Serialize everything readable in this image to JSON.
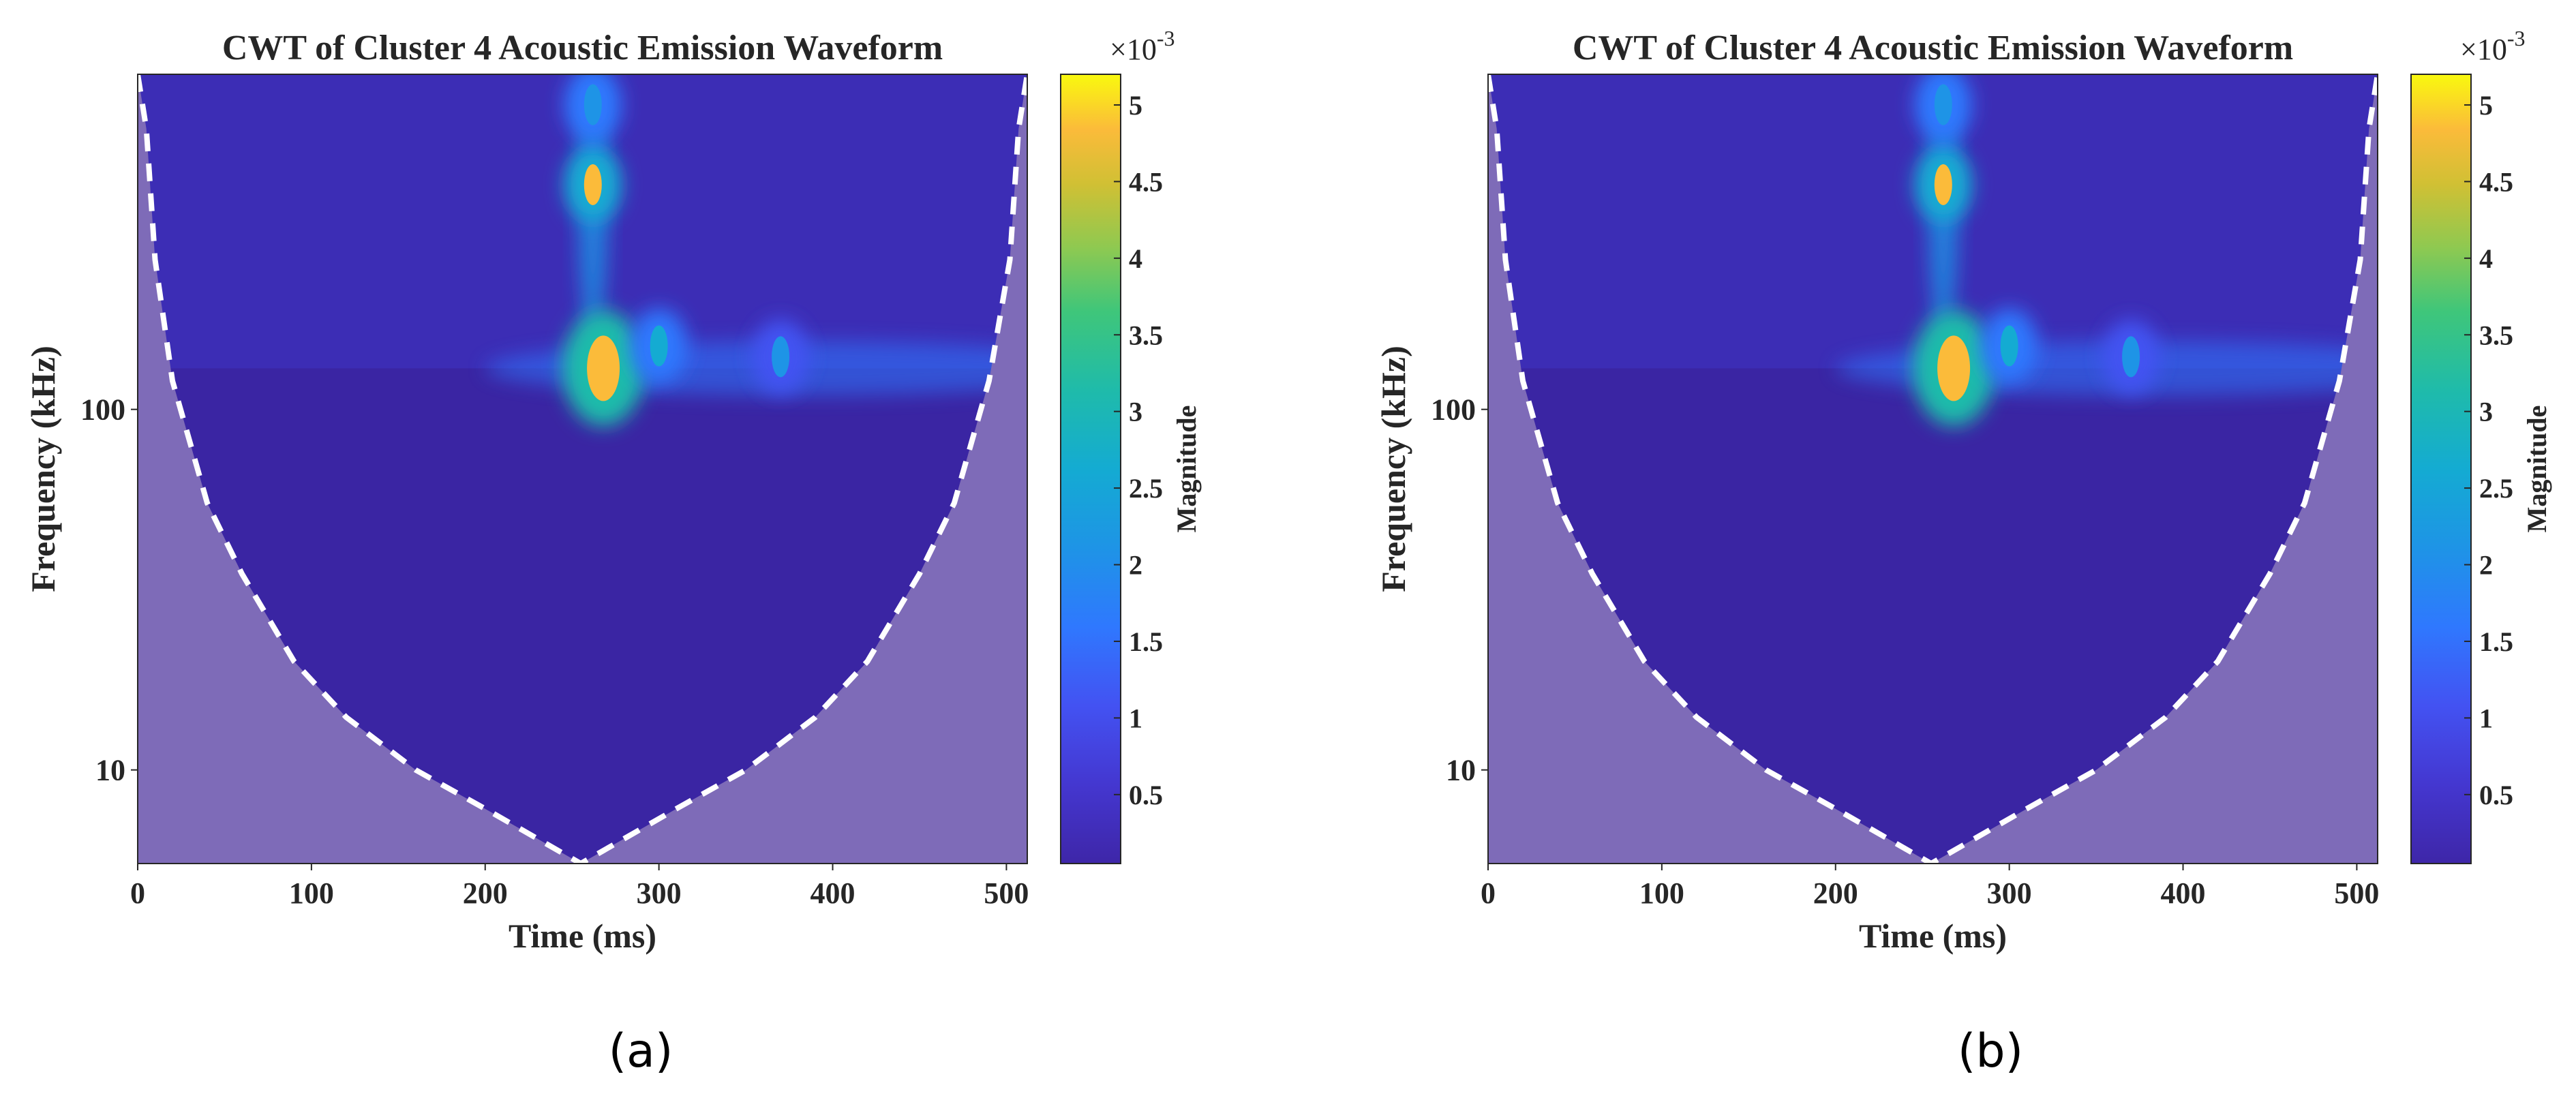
{
  "chart_data": [
    {
      "panel_label": "(a)",
      "type": "heatmap",
      "title": "CWT of Cluster 4 Acoustic Emission Waveform",
      "xlabel": "Time (ms)",
      "ylabel": "Frequency (kHz)",
      "xlim": [
        0,
        512
      ],
      "ylim": [
        5.5,
        850
      ],
      "yscale": "log",
      "xticks": [
        "0",
        "100",
        "200",
        "300",
        "400",
        "500"
      ],
      "yticks": [
        "10",
        "100"
      ],
      "colorbar": {
        "label": "Magnitude",
        "multiplier": "×10",
        "multiplier_exp": "-3",
        "range": [
          0.05,
          5.2
        ],
        "ticks": [
          "0.5",
          "1",
          "1.5",
          "2",
          "2.5",
          "3",
          "3.5",
          "4",
          "4.5",
          "5"
        ],
        "colormap": "parula"
      },
      "cone_of_influence": {
        "style": "white dashed",
        "shaded_color": "#7e6bb8",
        "points": [
          [
            0,
            850
          ],
          [
            5,
            600
          ],
          [
            10,
            260
          ],
          [
            20,
            120
          ],
          [
            40,
            55
          ],
          [
            60,
            35
          ],
          [
            90,
            20
          ],
          [
            120,
            14
          ],
          [
            160,
            10
          ],
          [
            200,
            7.8
          ],
          [
            255,
            5.5
          ],
          [
            310,
            7.8
          ],
          [
            350,
            10
          ],
          [
            390,
            14
          ],
          [
            420,
            20
          ],
          [
            450,
            35
          ],
          [
            470,
            55
          ],
          [
            490,
            120
          ],
          [
            502,
            260
          ],
          [
            507,
            600
          ],
          [
            512,
            850
          ]
        ]
      },
      "hotspots": [
        {
          "time": 268,
          "freq": 130,
          "magnitude": 4.8
        },
        {
          "time": 262,
          "freq": 420,
          "magnitude": 4.5
        },
        {
          "time": 300,
          "freq": 150,
          "magnitude": 2.6
        },
        {
          "time": 370,
          "freq": 140,
          "magnitude": 1.6
        },
        {
          "time": 262,
          "freq": 700,
          "magnitude": 2.0
        }
      ]
    },
    {
      "panel_label": "(b)",
      "type": "heatmap",
      "title": "CWT of Cluster 4 Acoustic Emission Waveform",
      "xlabel": "Time (ms)",
      "ylabel": "Frequency (kHz)",
      "xlim": [
        0,
        512
      ],
      "ylim": [
        5.5,
        850
      ],
      "yscale": "log",
      "xticks": [
        "0",
        "100",
        "200",
        "300",
        "400",
        "500"
      ],
      "yticks": [
        "10",
        "100"
      ],
      "colorbar": {
        "label": "Magnitude",
        "multiplier": "×10",
        "multiplier_exp": "-3",
        "range": [
          0.05,
          5.2
        ],
        "ticks": [
          "0.5",
          "1",
          "1.5",
          "2",
          "2.5",
          "3",
          "3.5",
          "4",
          "4.5",
          "5"
        ],
        "colormap": "parula"
      },
      "cone_of_influence": {
        "style": "white dashed",
        "shaded_color": "#7e6bb8",
        "points": [
          [
            0,
            850
          ],
          [
            5,
            600
          ],
          [
            10,
            260
          ],
          [
            20,
            120
          ],
          [
            40,
            55
          ],
          [
            60,
            35
          ],
          [
            90,
            20
          ],
          [
            120,
            14
          ],
          [
            160,
            10
          ],
          [
            200,
            7.8
          ],
          [
            255,
            5.5
          ],
          [
            310,
            7.8
          ],
          [
            350,
            10
          ],
          [
            390,
            14
          ],
          [
            420,
            20
          ],
          [
            450,
            35
          ],
          [
            470,
            55
          ],
          [
            490,
            120
          ],
          [
            502,
            260
          ],
          [
            507,
            600
          ],
          [
            512,
            850
          ]
        ]
      },
      "hotspots": [
        {
          "time": 268,
          "freq": 130,
          "magnitude": 4.8
        },
        {
          "time": 262,
          "freq": 420,
          "magnitude": 4.5
        },
        {
          "time": 300,
          "freq": 150,
          "magnitude": 2.6
        },
        {
          "time": 370,
          "freq": 140,
          "magnitude": 1.6
        },
        {
          "time": 262,
          "freq": 700,
          "magnitude": 2.0
        }
      ]
    }
  ]
}
